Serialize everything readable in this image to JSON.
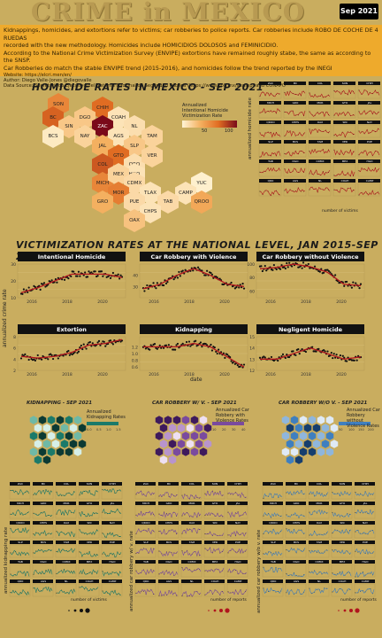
{
  "header": {
    "title": "CRIME in MEXICO",
    "date_badge": "Sep 2021",
    "lines": [
      "Kidnappings, homicides, and extortions refer to victims; car robberies to police reports. Car robberies include ROBO DE COCHE DE 4 RUEDAS",
      "recorded with the new methodology. Homicides include HOMICIDIOS DOLOSOS and FEMINICIDIO.",
      "According to the National Crime Victimization Survey (ENVIPE) extortions have remained roughly stabe, the same as according to the SNSP.",
      "Car Robberies do match the stable ENVIPE trend (2015-2016), and homicides follow the trend reported by the INEGI"
    ],
    "small_lines": [
      "Website: https://elcri.men/en/",
      "Author: Diego Valle-Jones @diegovalle",
      "Data Source: Secretariado Ejecutivo del Sistema Nacional de Seguridad Pública (https://www.gob.mx/sesnsp) and CONAPO"
    ]
  },
  "hexmap": {
    "title": "HOMICIDE RATES IN MEXICO - SEP 2021",
    "legend_title": [
      "Annualized",
      "Intentional Homicide",
      "Victimization Rate"
    ],
    "legend_ticks": [
      "50",
      "100"
    ],
    "states": [
      {
        "name": "SON",
        "value": 55
      },
      {
        "name": "CHIH",
        "value": 70
      },
      {
        "name": "BC",
        "value": 75
      },
      {
        "name": "DGO",
        "value": 20
      },
      {
        "name": "COAH",
        "value": 8
      },
      {
        "name": "SIN",
        "value": 20
      },
      {
        "name": "ZAC",
        "value": 120
      },
      {
        "name": "NL",
        "value": 10
      },
      {
        "name": "BCS",
        "value": 5
      },
      {
        "name": "NAY",
        "value": 15
      },
      {
        "name": "AGS",
        "value": 8
      },
      {
        "name": "TAM",
        "value": 15
      },
      {
        "name": "JAL",
        "value": 30
      },
      {
        "name": "SLP",
        "value": 20
      },
      {
        "name": "GTO",
        "value": 70
      },
      {
        "name": "QRO",
        "value": 10
      },
      {
        "name": "VER",
        "value": 15
      },
      {
        "name": "COL",
        "value": 80
      },
      {
        "name": "HGO",
        "value": 8
      },
      {
        "name": "MICH",
        "value": 55
      },
      {
        "name": "MEX",
        "value": 15
      },
      {
        "name": "CDMX",
        "value": 12
      },
      {
        "name": "YUC",
        "value": 2
      },
      {
        "name": "MOR",
        "value": 60
      },
      {
        "name": "TLAX",
        "value": 8
      },
      {
        "name": "CAMP",
        "value": 8
      },
      {
        "name": "GRO",
        "value": 30
      },
      {
        "name": "PUE",
        "value": 12
      },
      {
        "name": "TAB",
        "value": 12
      },
      {
        "name": "QROO",
        "value": 35
      },
      {
        "name": "CHPS",
        "value": 8
      },
      {
        "name": "OAX",
        "value": 22
      }
    ]
  },
  "victimization": {
    "title": "VICTIMIZATION RATES AT THE NATIONAL LEVEL, JAN 2015-SEP 2021",
    "ylabel": "annualized crime rate",
    "xlabel": "date",
    "year_ticks": [
      "2016",
      "2018",
      "2020"
    ]
  },
  "small_multiples": [
    {
      "title": "KIDNAPPING - SEP 2021",
      "legend": [
        "Annualized",
        "Kidnapping Rates"
      ],
      "ticks": [
        "0.0",
        "0.5",
        "1.0",
        "1.5"
      ],
      "ylabel": "annualized kidnapping rate"
    },
    {
      "title": "CAR ROBBERY W/ V. - SEP 2021",
      "legend": [
        "Annualized Car",
        "Robbery with",
        "Violence Rates"
      ],
      "ticks": [
        "10",
        "20",
        "30",
        "40"
      ],
      "ylabel": "annualized car robbery w/ v. rate"
    },
    {
      "title": "CAR ROBBERY W/O V. - SEP 2021",
      "legend": [
        "Annualized Car",
        "Robbery without",
        "Violence Rates"
      ],
      "ticks": [
        "50",
        "100",
        "150",
        "200"
      ],
      "ylabel": "annualized car robbery w/o v. rate"
    }
  ],
  "top_right": {
    "ylabel": "annualized homicide rate",
    "legend_title": "number of victims"
  },
  "bottom_legends": [
    "number of victims",
    "number of reports",
    "number of reports"
  ],
  "state_abbr": [
    "ZAC",
    "BC",
    "COL",
    "SON",
    "CHIH",
    "MICH",
    "GRO",
    "MOR",
    "GTO",
    "JAL",
    "QROO",
    "CHPS",
    "OAX",
    "SIN",
    "NAY",
    "SLP",
    "BCS",
    "TAM",
    "VER",
    "PUE",
    "TAB",
    "DGO",
    "CDMX",
    "MEX",
    "HGO",
    "QRO",
    "AGS",
    "NL",
    "COAH",
    "CAMP",
    "TLAX",
    "YUC"
  ],
  "chart_data": [
    {
      "type": "line",
      "title": "Intentional Homicide",
      "x": [
        "2015",
        "2016",
        "2017",
        "2018",
        "2019",
        "2020",
        "2021"
      ],
      "series": [
        {
          "values": [
            13,
            16,
            20,
            24,
            24,
            24,
            22
          ]
        }
      ],
      "ylim": [
        10,
        30
      ],
      "ticks": [
        "10",
        "20",
        "30"
      ]
    },
    {
      "type": "line",
      "title": "Car Robbery with Violence",
      "x": [
        "2015",
        "2016",
        "2017",
        "2018",
        "2019",
        "2020",
        "2021"
      ],
      "series": [
        {
          "values": [
            28,
            32,
            40,
            46,
            40,
            32,
            30
          ]
        }
      ],
      "ylim": [
        20,
        50
      ],
      "ticks": [
        "30",
        "40"
      ]
    },
    {
      "type": "line",
      "title": "Car Robbery without Violence",
      "x": [
        "2015",
        "2016",
        "2017",
        "2018",
        "2019",
        "2020",
        "2021"
      ],
      "series": [
        {
          "values": [
            93,
            95,
            100,
            96,
            88,
            70,
            68
          ]
        }
      ],
      "ylim": [
        50,
        100
      ],
      "ticks": [
        "60",
        "80",
        "100"
      ]
    },
    {
      "type": "line",
      "title": "Extortion",
      "x": [
        "2015",
        "2016",
        "2017",
        "2018",
        "2019",
        "2020",
        "2021"
      ],
      "series": [
        {
          "values": [
            4.5,
            4.2,
            4.5,
            5.2,
            6.5,
            6.8,
            7.5
          ]
        }
      ],
      "ylim": [
        2,
        8
      ],
      "ticks": [
        "2",
        "4",
        "6",
        "8"
      ]
    },
    {
      "type": "line",
      "title": "Kidnapping",
      "x": [
        "2015",
        "2016",
        "2017",
        "2018",
        "2019",
        "2020",
        "2021"
      ],
      "series": [
        {
          "values": [
            1.2,
            1.2,
            1.2,
            1.3,
            1.2,
            0.9,
            0.6
          ]
        }
      ],
      "ylim": [
        0.5,
        1.5
      ],
      "ticks": [
        "0.6",
        "0.8",
        "1.0",
        "1.2"
      ]
    },
    {
      "type": "line",
      "title": "Negligent Homicide",
      "x": [
        "2015",
        "2016",
        "2017",
        "2018",
        "2019",
        "2020",
        "2021"
      ],
      "series": [
        {
          "values": [
            13,
            13,
            13.5,
            14,
            13.5,
            13,
            13.2
          ]
        }
      ],
      "ylim": [
        12,
        15
      ],
      "ticks": [
        "12",
        "13",
        "14",
        "15"
      ]
    }
  ]
}
